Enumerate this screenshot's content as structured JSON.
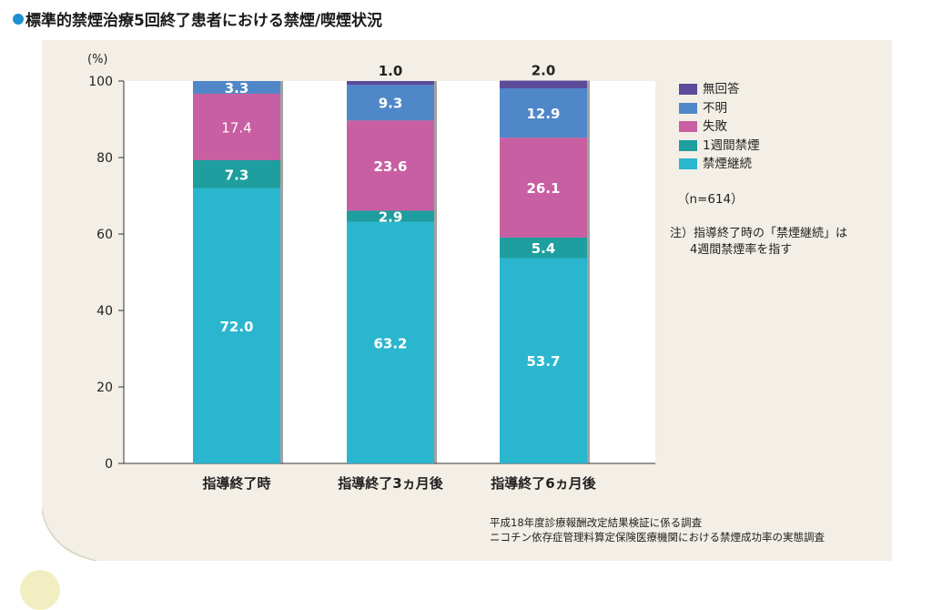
{
  "title": "標準的禁煙治療5回終了患者における禁煙/喫煙状況",
  "y_unit": "(%)",
  "sample_size": "（n=614）",
  "note": {
    "line1": "注）指導終了時の「禁煙継続」は",
    "line2": "4週間禁煙率を指す"
  },
  "source": {
    "line1": "平成18年度診療報酬改定結果検証に係る調査",
    "line2": "ニコチン依存症管理料算定保険医療機関における禁煙成功率の実態調査"
  },
  "chart_data": {
    "type": "bar",
    "stacked": true,
    "categories": [
      "指導終了時",
      "指導終了3ヵ月後",
      "指導終了6ヵ月後"
    ],
    "series": [
      {
        "name": "禁煙継続",
        "color": "#2bb6cf",
        "values": [
          72.0,
          63.2,
          53.7
        ]
      },
      {
        "name": "1週間禁煙",
        "color": "#1e9e9e",
        "values": [
          7.3,
          2.9,
          5.4
        ]
      },
      {
        "name": "失敗",
        "color": "#c95fa3",
        "values": [
          17.4,
          23.6,
          26.1
        ]
      },
      {
        "name": "不明",
        "color": "#4f87c8",
        "values": [
          3.3,
          9.3,
          12.9
        ]
      },
      {
        "name": "無回答",
        "color": "#5c4a9a",
        "values": [
          0,
          1.0,
          2.0
        ]
      }
    ],
    "value_labels": [
      [
        "72.0",
        "7.3",
        "17.4",
        "3.3",
        ""
      ],
      [
        "63.2",
        "2.9",
        "23.6",
        "9.3",
        "1.0"
      ],
      [
        "53.7",
        "5.4",
        "26.1",
        "12.9",
        "2.0"
      ]
    ],
    "legend_order": [
      "無回答",
      "不明",
      "失敗",
      "1週間禁煙",
      "禁煙継続"
    ],
    "ylim": [
      0,
      100
    ],
    "yticks": [
      "0",
      "20",
      "40",
      "60",
      "80",
      "100"
    ],
    "legend_position": "right"
  }
}
